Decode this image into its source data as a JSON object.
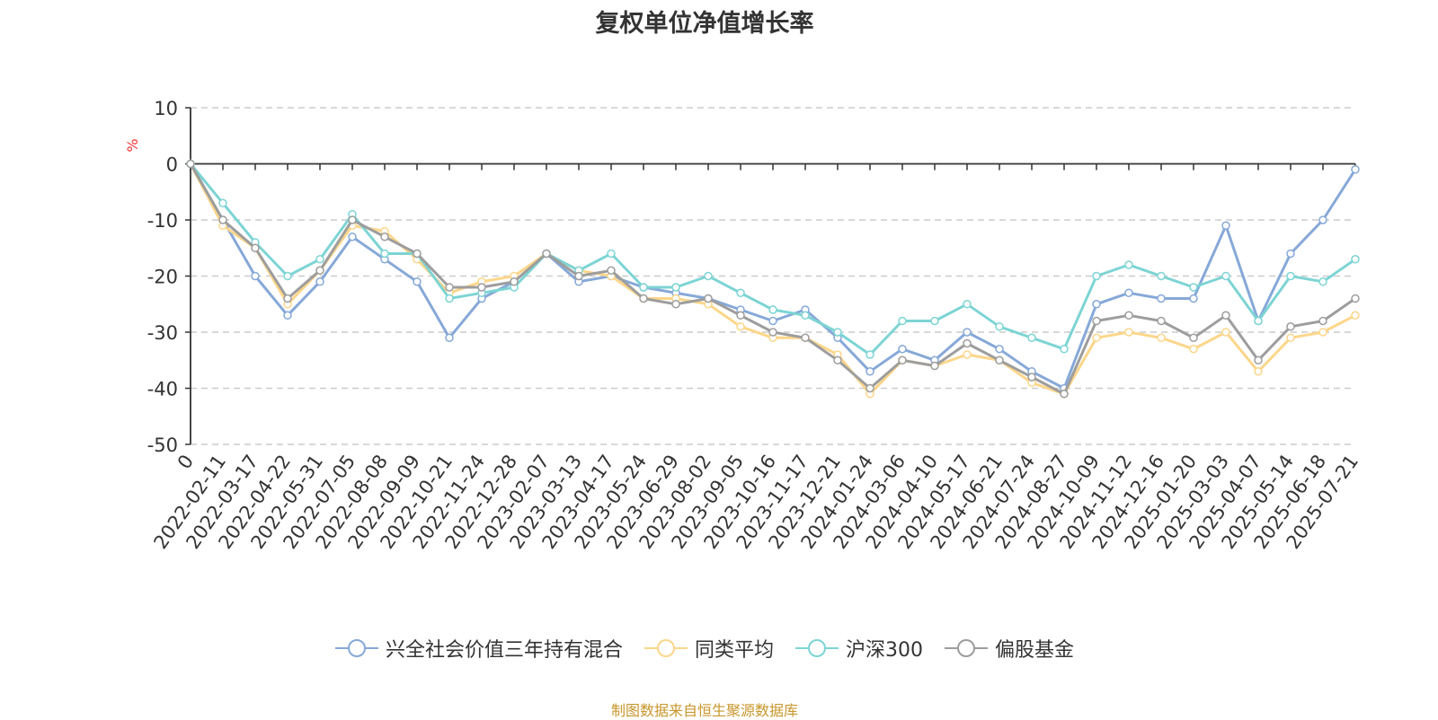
{
  "chart_data": {
    "type": "line",
    "title": "复权单位净值增长率",
    "ylabel": "%",
    "ylim": [
      -50,
      10
    ],
    "yticks": [
      10,
      0,
      -10,
      -20,
      -30,
      -40,
      -50
    ],
    "grid": true,
    "legend_position": "bottom",
    "x": [
      "0",
      "2022-02-11",
      "2022-03-17",
      "2022-04-22",
      "2022-05-31",
      "2022-07-05",
      "2022-08-08",
      "2022-09-09",
      "2022-10-21",
      "2022-11-24",
      "2022-12-28",
      "2023-02-07",
      "2023-03-13",
      "2023-04-17",
      "2023-05-24",
      "2023-06-29",
      "2023-08-02",
      "2023-09-05",
      "2023-10-16",
      "2023-11-17",
      "2023-12-21",
      "2024-01-24",
      "2024-03-06",
      "2024-04-10",
      "2024-05-17",
      "2024-06-21",
      "2024-07-24",
      "2024-08-27",
      "2024-10-09",
      "2024-11-12",
      "2024-12-16",
      "2025-01-20",
      "2025-03-03",
      "2025-04-07",
      "2025-05-14",
      "2025-06-18",
      "2025-07-21"
    ],
    "series": [
      {
        "name": "兴全社会价值三年持有混合",
        "color": "#86a8d8",
        "values": [
          0,
          -10,
          -20,
          -27,
          -21,
          -13,
          -17,
          -21,
          -31,
          -24,
          -21,
          -16,
          -21,
          -20,
          -22,
          -23,
          -24,
          -26,
          -28,
          -26,
          -31,
          -37,
          -33,
          -35,
          -30,
          -33,
          -37,
          -40,
          -25,
          -23,
          -24,
          -24,
          -11,
          -28,
          -16,
          -10,
          -1
        ]
      },
      {
        "name": "同类平均",
        "color": "#fcd68a",
        "values": [
          0,
          -11,
          -15,
          -25,
          -19,
          -11,
          -12,
          -17,
          -23,
          -21,
          -20,
          -16,
          -19,
          -20,
          -24,
          -24,
          -25,
          -29,
          -31,
          -31,
          -34,
          -41,
          -35,
          -36,
          -34,
          -35,
          -39,
          -41,
          -31,
          -30,
          -31,
          -33,
          -30,
          -37,
          -31,
          -30,
          -27
        ]
      },
      {
        "name": "沪深300",
        "color": "#7dd4d4",
        "values": [
          0,
          -7,
          -14,
          -20,
          -17,
          -9,
          -16,
          -16,
          -24,
          -23,
          -22,
          -16,
          -19,
          -16,
          -22,
          -22,
          -20,
          -23,
          -26,
          -27,
          -30,
          -34,
          -28,
          -28,
          -25,
          -29,
          -31,
          -33,
          -20,
          -18,
          -20,
          -22,
          -20,
          -28,
          -20,
          -21,
          -17
        ]
      },
      {
        "name": "偏股基金",
        "color": "#9d9d9d",
        "values": [
          0,
          -10,
          -15,
          -24,
          -19,
          -10,
          -13,
          -16,
          -22,
          -22,
          -21,
          -16,
          -20,
          -19,
          -24,
          -25,
          -24,
          -27,
          -30,
          -31,
          -35,
          -40,
          -35,
          -36,
          -32,
          -35,
          -38,
          -41,
          -28,
          -27,
          -28,
          -31,
          -27,
          -35,
          -29,
          -28,
          -24
        ]
      }
    ]
  },
  "source": "制图数据来自恒生聚源数据库"
}
